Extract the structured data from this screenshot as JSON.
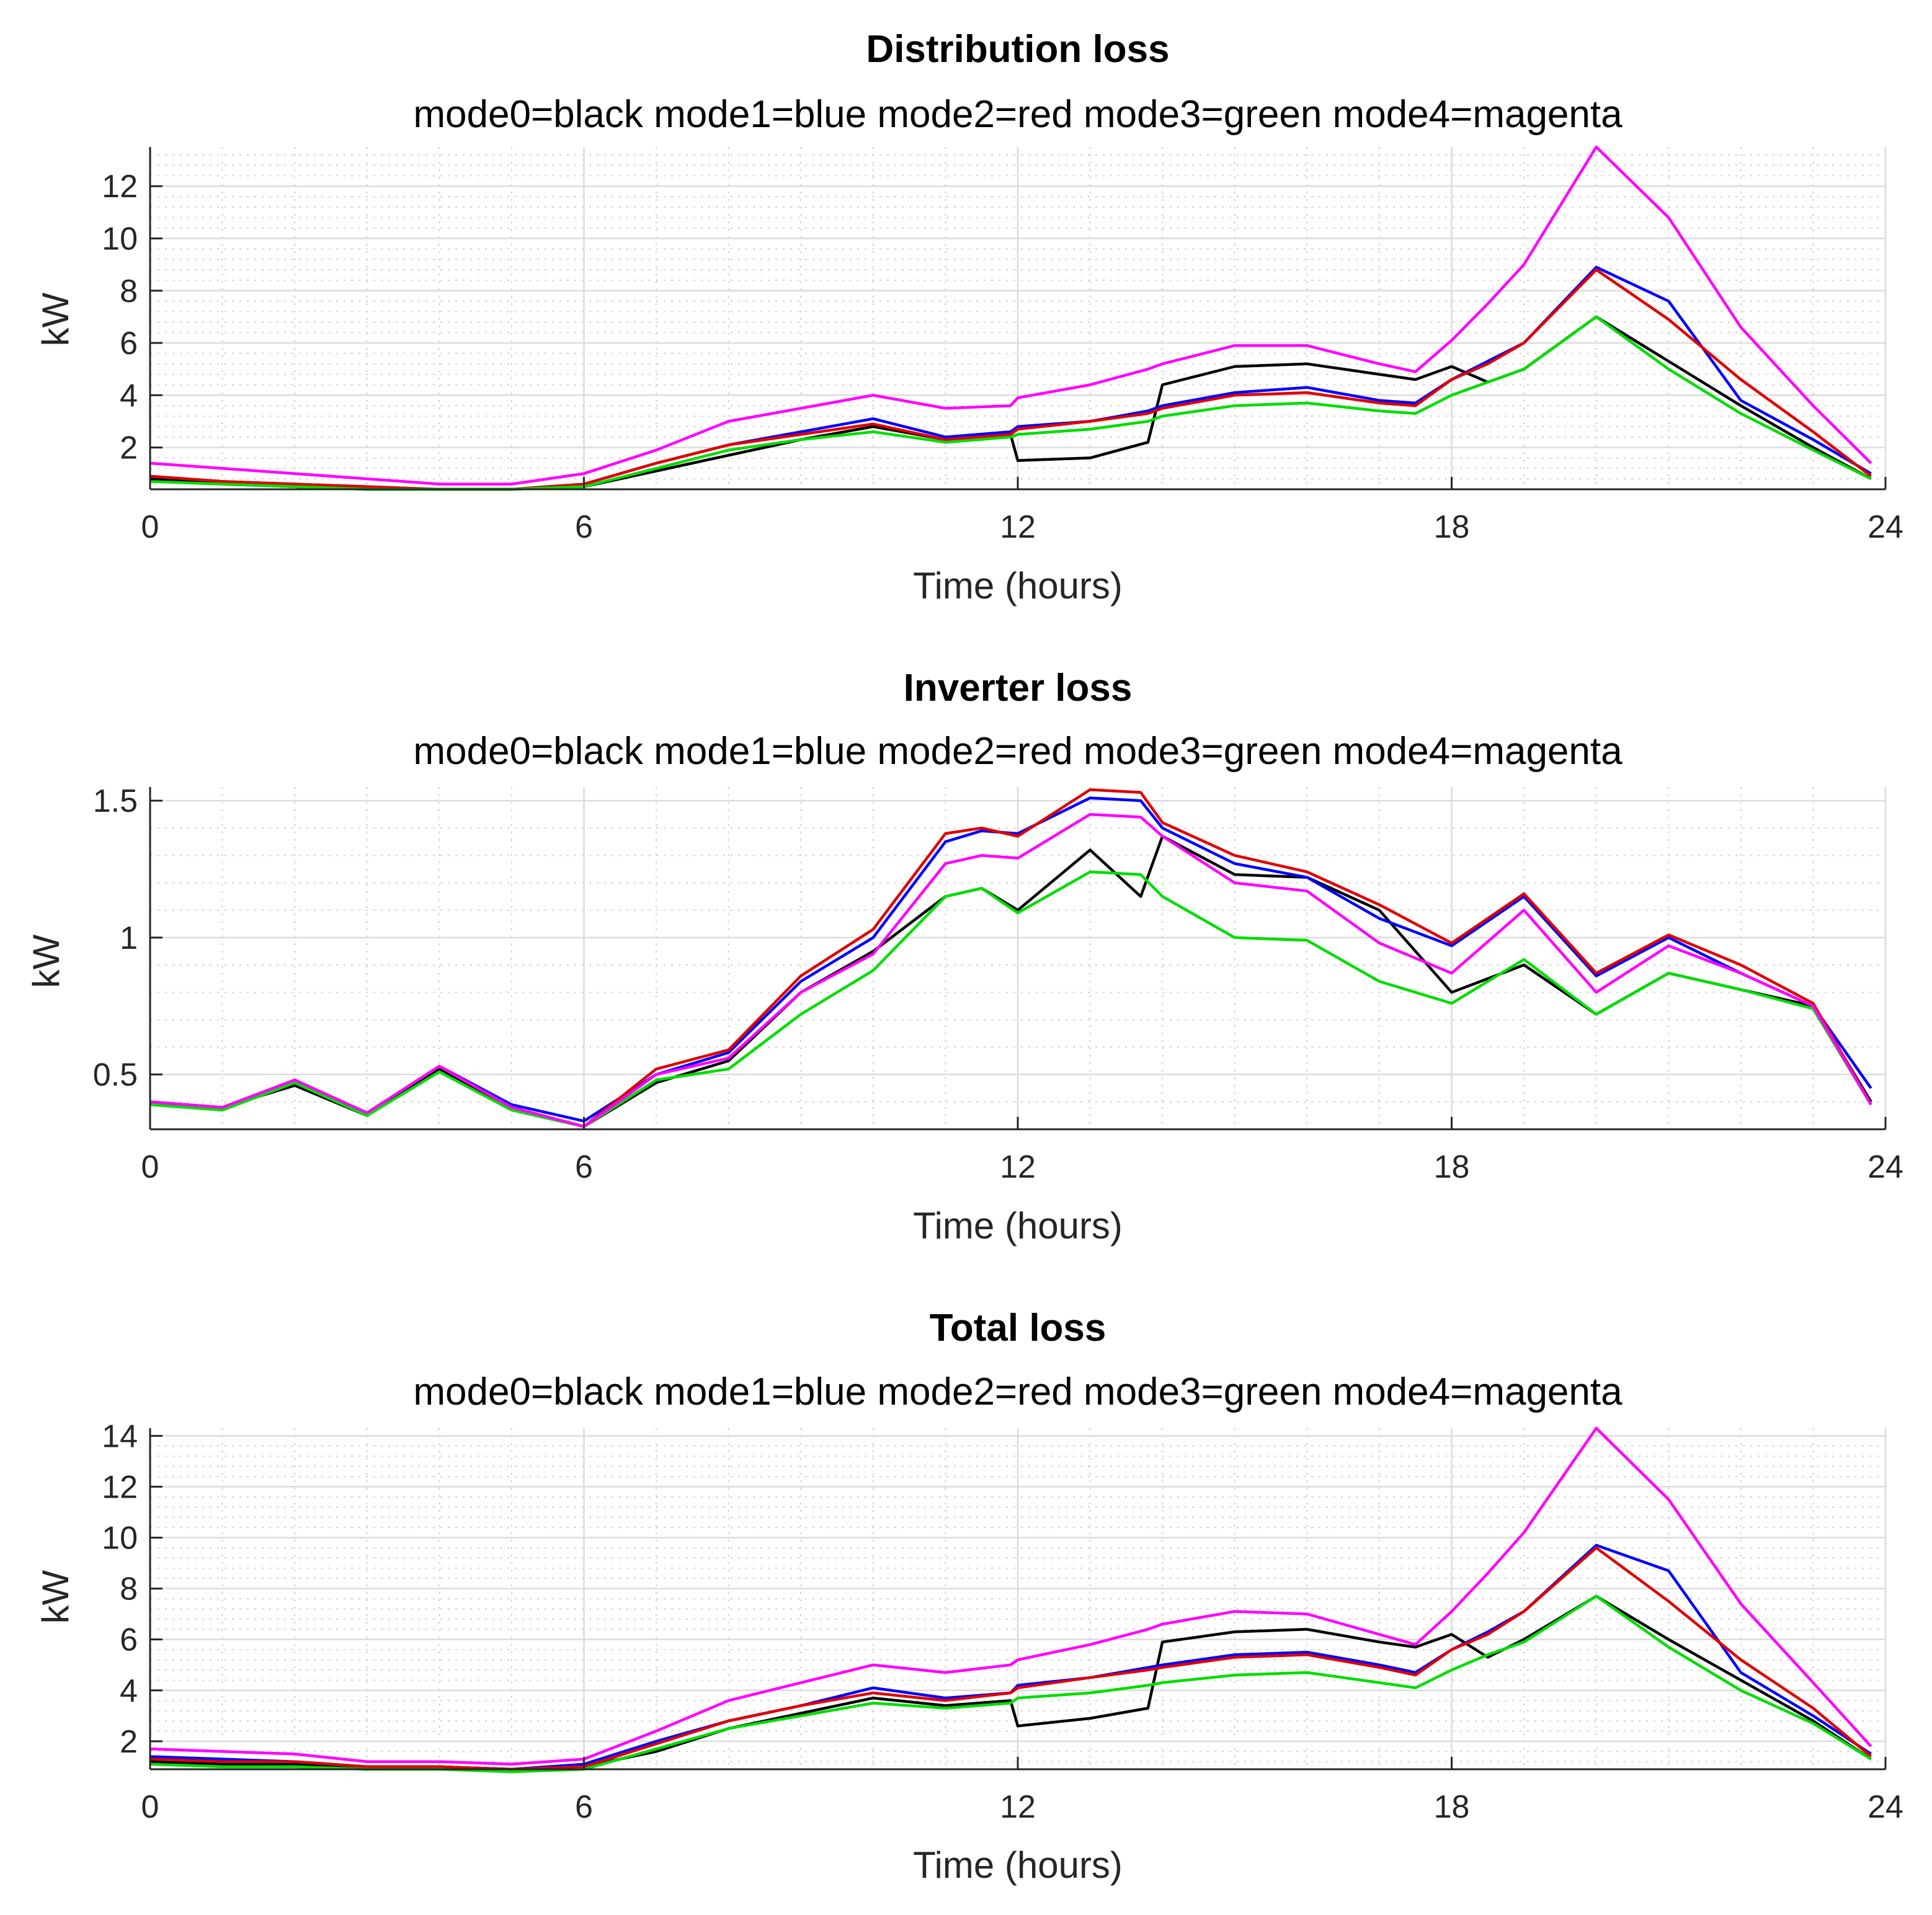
{
  "chart_data": [
    {
      "type": "line",
      "title": "Distribution loss",
      "subtitle": "mode0=black mode1=blue mode2=red mode3=green mode4=magenta",
      "xlabel": "Time (hours)",
      "ylabel": "kW",
      "xlim": [
        0,
        24
      ],
      "ylim": [
        0.4,
        13.5
      ],
      "xticks": [
        0,
        6,
        12,
        18,
        24
      ],
      "yticks": [
        2,
        4,
        6,
        8,
        10,
        12
      ],
      "ytick_labels": [
        "2",
        "4",
        "6",
        "8",
        "10",
        "12"
      ],
      "grid": true,
      "x": [
        0,
        1,
        2,
        3,
        4,
        5,
        6,
        7,
        8,
        9,
        10,
        11,
        11.9,
        12,
        13,
        13.8,
        14,
        15,
        16,
        17,
        17.5,
        18,
        18.5,
        19,
        20,
        21,
        22,
        23,
        23.8
      ],
      "series": [
        {
          "name": "mode0",
          "color": "#000000",
          "values": [
            0.8,
            0.6,
            0.5,
            0.4,
            0.4,
            0.4,
            0.5,
            1.1,
            1.7,
            2.3,
            2.8,
            2.3,
            2.5,
            1.5,
            1.6,
            2.2,
            4.4,
            5.1,
            5.2,
            4.8,
            4.6,
            5.1,
            4.5,
            5.0,
            7.0,
            5.3,
            3.6,
            2.0,
            0.8
          ]
        },
        {
          "name": "mode1",
          "color": "#0000ff",
          "values": [
            0.9,
            0.7,
            0.6,
            0.5,
            0.4,
            0.4,
            0.6,
            1.4,
            2.1,
            2.6,
            3.1,
            2.4,
            2.6,
            2.8,
            3.0,
            3.4,
            3.6,
            4.1,
            4.3,
            3.8,
            3.7,
            4.6,
            5.3,
            6.0,
            8.9,
            7.6,
            3.8,
            2.3,
            1.0
          ]
        },
        {
          "name": "mode2",
          "color": "#e00000",
          "values": [
            0.9,
            0.7,
            0.6,
            0.5,
            0.4,
            0.4,
            0.6,
            1.4,
            2.1,
            2.5,
            2.9,
            2.3,
            2.5,
            2.7,
            3.0,
            3.3,
            3.5,
            4.0,
            4.1,
            3.7,
            3.6,
            4.6,
            5.2,
            6.0,
            8.8,
            6.9,
            4.6,
            2.6,
            0.9
          ]
        },
        {
          "name": "mode3",
          "color": "#00dd00",
          "values": [
            0.7,
            0.6,
            0.5,
            0.4,
            0.4,
            0.4,
            0.5,
            1.2,
            1.9,
            2.3,
            2.6,
            2.2,
            2.4,
            2.5,
            2.7,
            3.0,
            3.2,
            3.6,
            3.7,
            3.4,
            3.3,
            4.0,
            4.5,
            5.0,
            7.0,
            5.0,
            3.3,
            1.9,
            0.8
          ]
        },
        {
          "name": "mode4",
          "color": "#ff00ff",
          "values": [
            1.4,
            1.2,
            1.0,
            0.8,
            0.6,
            0.6,
            1.0,
            1.9,
            3.0,
            3.5,
            4.0,
            3.5,
            3.6,
            3.9,
            4.4,
            5.0,
            5.2,
            5.9,
            5.9,
            5.2,
            4.9,
            6.1,
            7.5,
            9.0,
            13.5,
            10.8,
            6.6,
            3.6,
            1.4
          ]
        }
      ]
    },
    {
      "type": "line",
      "title": "Inverter loss",
      "subtitle": "mode0=black mode1=blue mode2=red mode3=green mode4=magenta",
      "xlabel": "Time (hours)",
      "ylabel": "kW",
      "xlim": [
        0,
        24
      ],
      "ylim": [
        0.3,
        1.55
      ],
      "xticks": [
        0,
        6,
        12,
        18,
        24
      ],
      "yticks": [
        0.5,
        1,
        1.5
      ],
      "ytick_labels": [
        "0.5",
        "1",
        "1.5"
      ],
      "grid": true,
      "x": [
        0,
        1,
        2,
        3,
        4,
        5,
        6,
        7,
        8,
        9,
        10,
        11,
        11.5,
        12,
        13,
        13.7,
        14,
        15,
        16,
        17,
        18,
        19,
        20,
        21,
        22,
        23,
        23.8
      ],
      "series": [
        {
          "name": "mode0",
          "color": "#000000",
          "values": [
            0.39,
            0.38,
            0.46,
            0.35,
            0.52,
            0.38,
            0.31,
            0.47,
            0.55,
            0.8,
            0.95,
            1.15,
            1.18,
            1.1,
            1.32,
            1.15,
            1.37,
            1.23,
            1.22,
            1.1,
            0.8,
            0.9,
            0.72,
            0.87,
            0.81,
            0.75,
            0.4
          ]
        },
        {
          "name": "mode1",
          "color": "#0000ff",
          "values": [
            0.4,
            0.38,
            0.47,
            0.36,
            0.53,
            0.39,
            0.33,
            0.5,
            0.58,
            0.84,
            1.0,
            1.35,
            1.39,
            1.38,
            1.51,
            1.5,
            1.4,
            1.27,
            1.22,
            1.07,
            0.97,
            1.15,
            0.86,
            1.0,
            0.87,
            0.75,
            0.45
          ]
        },
        {
          "name": "mode2",
          "color": "#e00000",
          "values": [
            0.4,
            0.38,
            0.48,
            0.36,
            0.53,
            0.38,
            0.31,
            0.52,
            0.59,
            0.86,
            1.03,
            1.38,
            1.4,
            1.37,
            1.54,
            1.53,
            1.42,
            1.3,
            1.24,
            1.12,
            0.98,
            1.16,
            0.87,
            1.01,
            0.9,
            0.76,
            0.39
          ]
        },
        {
          "name": "mode3",
          "color": "#00dd00",
          "values": [
            0.39,
            0.37,
            0.47,
            0.35,
            0.51,
            0.37,
            0.31,
            0.48,
            0.52,
            0.72,
            0.88,
            1.15,
            1.18,
            1.09,
            1.24,
            1.23,
            1.15,
            1.0,
            0.99,
            0.84,
            0.76,
            0.92,
            0.72,
            0.87,
            0.81,
            0.74,
            0.39
          ]
        },
        {
          "name": "mode4",
          "color": "#ff00ff",
          "values": [
            0.4,
            0.38,
            0.48,
            0.36,
            0.53,
            0.38,
            0.31,
            0.5,
            0.56,
            0.8,
            0.94,
            1.27,
            1.3,
            1.29,
            1.45,
            1.44,
            1.37,
            1.2,
            1.17,
            0.98,
            0.87,
            1.1,
            0.8,
            0.97,
            0.87,
            0.75,
            0.39
          ]
        }
      ]
    },
    {
      "type": "line",
      "title": "Total loss",
      "subtitle": "mode0=black mode1=blue mode2=red mode3=green mode4=magenta",
      "xlabel": "Time (hours)",
      "ylabel": "kW",
      "xlim": [
        0,
        24
      ],
      "ylim": [
        0.9,
        14.3
      ],
      "xticks": [
        0,
        6,
        12,
        18,
        24
      ],
      "yticks": [
        2,
        4,
        6,
        8,
        10,
        12,
        14
      ],
      "ytick_labels": [
        "2",
        "4",
        "6",
        "8",
        "10",
        "12",
        "14"
      ],
      "grid": true,
      "x": [
        0,
        1,
        2,
        3,
        4,
        5,
        6,
        7,
        8,
        9,
        10,
        11,
        11.9,
        12,
        13,
        13.8,
        14,
        15,
        16,
        17,
        17.5,
        18,
        18.5,
        19,
        20,
        21,
        22,
        23,
        23.8
      ],
      "series": [
        {
          "name": "mode0",
          "color": "#000000",
          "values": [
            1.2,
            1.1,
            1.1,
            0.9,
            1.0,
            0.9,
            1.0,
            1.6,
            2.5,
            3.1,
            3.7,
            3.4,
            3.6,
            2.6,
            2.9,
            3.3,
            5.9,
            6.3,
            6.4,
            5.9,
            5.7,
            6.2,
            5.3,
            6.0,
            7.7,
            6.0,
            4.4,
            2.8,
            1.3
          ]
        },
        {
          "name": "mode1",
          "color": "#0000ff",
          "values": [
            1.4,
            1.3,
            1.2,
            1.0,
            1.0,
            0.9,
            1.1,
            2.0,
            2.8,
            3.4,
            4.1,
            3.7,
            3.9,
            4.2,
            4.5,
            4.9,
            5.0,
            5.4,
            5.5,
            5.0,
            4.7,
            5.6,
            6.3,
            7.1,
            9.7,
            8.7,
            4.7,
            3.0,
            1.5
          ]
        },
        {
          "name": "mode2",
          "color": "#e00000",
          "values": [
            1.3,
            1.2,
            1.2,
            1.0,
            1.0,
            0.9,
            1.0,
            1.9,
            2.8,
            3.4,
            3.9,
            3.6,
            3.9,
            4.1,
            4.5,
            4.8,
            4.9,
            5.3,
            5.4,
            4.9,
            4.6,
            5.6,
            6.2,
            7.1,
            9.6,
            7.5,
            5.2,
            3.3,
            1.4
          ]
        },
        {
          "name": "mode3",
          "color": "#00dd00",
          "values": [
            1.1,
            1.0,
            1.0,
            0.9,
            0.9,
            0.8,
            0.9,
            1.7,
            2.5,
            3.0,
            3.5,
            3.3,
            3.5,
            3.7,
            3.9,
            4.2,
            4.3,
            4.6,
            4.7,
            4.3,
            4.1,
            4.8,
            5.4,
            5.9,
            7.7,
            5.7,
            4.0,
            2.7,
            1.3
          ]
        },
        {
          "name": "mode4",
          "color": "#ff00ff",
          "values": [
            1.7,
            1.6,
            1.5,
            1.2,
            1.2,
            1.1,
            1.3,
            2.4,
            3.6,
            4.3,
            5.0,
            4.7,
            5.0,
            5.2,
            5.8,
            6.4,
            6.6,
            7.1,
            7.0,
            6.2,
            5.8,
            7.1,
            8.6,
            10.2,
            14.3,
            11.5,
            7.4,
            4.3,
            1.8
          ]
        }
      ]
    }
  ]
}
